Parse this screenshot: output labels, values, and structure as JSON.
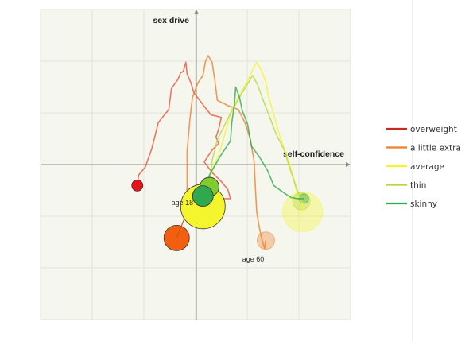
{
  "chart_data": {
    "type": "scatter",
    "title": "",
    "xlabel": "self-confidence",
    "ylabel": "sex drive",
    "xlim": [
      -3,
      3
    ],
    "ylim": [
      -3,
      3
    ],
    "grid": true,
    "legend_position": "right",
    "annotations": [
      {
        "text": "age 18",
        "x": -0.95,
        "y": -1.55
      },
      {
        "text": "age 60",
        "x": 1.75,
        "y": -3.7
      }
    ],
    "series": [
      {
        "name": "overweight",
        "color": "#e8553b",
        "path": [
          [
            -2.25,
            -0.8
          ],
          [
            -2.2,
            -0.4
          ],
          [
            -1.95,
            -0.1
          ],
          [
            -1.7,
            0.6
          ],
          [
            -1.45,
            1.6
          ],
          [
            -1.05,
            2.1
          ],
          [
            -0.95,
            2.9
          ],
          [
            -0.7,
            3.25
          ],
          [
            -0.6,
            3.5
          ],
          [
            -0.5,
            3.55
          ],
          [
            -0.4,
            3.9
          ],
          [
            -0.35,
            3.45
          ],
          [
            -0.2,
            3.1
          ],
          [
            -0.1,
            2.75
          ],
          [
            0.2,
            2.35
          ],
          [
            0.55,
            1.9
          ],
          [
            0.95,
            1.8
          ],
          [
            0.85,
            1.35
          ],
          [
            0.75,
            1.05
          ],
          [
            0.85,
            0.8
          ],
          [
            0.6,
            0.55
          ],
          [
            0.3,
            0.1
          ],
          [
            0.6,
            -0.3
          ],
          [
            0.95,
            -0.65
          ],
          [
            1.2,
            -0.95
          ],
          [
            1.3,
            -1.3
          ],
          [
            1.05,
            -1.3
          ],
          [
            0.7,
            -1.4
          ],
          [
            0.45,
            -1.3
          ],
          [
            0.3,
            -1.3
          ]
        ],
        "bubble": {
          "x": 0.3,
          "y": -1.25,
          "r": 7,
          "faded": true
        }
      },
      {
        "name": "a little extra",
        "color": "#f07e2a",
        "path": [
          [
            -0.4,
            -1.8
          ],
          [
            -0.35,
            -0.8
          ],
          [
            -0.35,
            0.5
          ],
          [
            -0.25,
            1.7
          ],
          [
            -0.15,
            2.55
          ],
          [
            0.05,
            3.1
          ],
          [
            0.25,
            3.4
          ],
          [
            0.35,
            3.95
          ],
          [
            0.45,
            4.15
          ],
          [
            0.6,
            3.9
          ],
          [
            0.7,
            3.25
          ],
          [
            0.8,
            2.45
          ],
          [
            1.2,
            2.25
          ],
          [
            1.6,
            2.1
          ],
          [
            1.85,
            1.6
          ],
          [
            2.05,
            1.0
          ],
          [
            2.2,
            0.15
          ],
          [
            2.25,
            -0.9
          ],
          [
            2.3,
            -1.8
          ],
          [
            2.4,
            -2.4
          ],
          [
            2.5,
            -2.85
          ],
          [
            2.6,
            -3.2
          ],
          [
            2.65,
            -2.9
          ]
        ],
        "bubble": {
          "x": 2.65,
          "y": -2.9,
          "r": 11,
          "faded": true
        }
      },
      {
        "name": "average",
        "color": "#f5f52d",
        "path": [
          [
            0.3,
            -1.6
          ],
          [
            0.45,
            -0.6
          ],
          [
            0.9,
            0.5
          ],
          [
            1.35,
            2.1
          ],
          [
            1.9,
            3.1
          ],
          [
            2.3,
            3.9
          ],
          [
            2.45,
            3.65
          ],
          [
            2.65,
            3.15
          ],
          [
            2.75,
            2.6
          ],
          [
            2.95,
            1.9
          ],
          [
            3.15,
            1.2
          ],
          [
            3.35,
            0.6
          ],
          [
            3.55,
            0.05
          ],
          [
            3.7,
            -0.5
          ],
          [
            3.8,
            -0.95
          ],
          [
            4.05,
            -1.5
          ],
          [
            4.05,
            -1.8
          ]
        ],
        "bubble": {
          "x": 4.05,
          "y": -1.8,
          "r": 25,
          "faded": true
        },
        "bubble_start": {
          "x": 0.25,
          "y": -1.6,
          "r": 28
        }
      },
      {
        "name": "thin",
        "color": "#b5d83d",
        "path": [
          [
            0.5,
            -0.85
          ],
          [
            0.6,
            0.15
          ],
          [
            0.8,
            0.95
          ],
          [
            1.3,
            1.95
          ],
          [
            1.75,
            2.75
          ],
          [
            2.15,
            3.4
          ],
          [
            2.35,
            3.0
          ],
          [
            2.55,
            2.45
          ],
          [
            2.8,
            1.8
          ],
          [
            3.05,
            1.15
          ],
          [
            3.35,
            0.55
          ],
          [
            3.55,
            -0.1
          ],
          [
            3.75,
            -0.7
          ],
          [
            3.85,
            -1.0
          ],
          [
            4.0,
            -1.4
          ]
        ],
        "bubble": {
          "x": 4.0,
          "y": -1.4,
          "r": 11,
          "faded": true
        },
        "bubble_start": {
          "x": 0.5,
          "y": -0.85,
          "r": 12
        }
      },
      {
        "name": "skinny",
        "color": "#2fa850",
        "path": [
          [
            0.25,
            -1.2
          ],
          [
            0.5,
            -0.4
          ],
          [
            0.9,
            0.3
          ],
          [
            1.3,
            0.9
          ],
          [
            1.35,
            1.6
          ],
          [
            1.45,
            2.3
          ],
          [
            1.5,
            2.95
          ],
          [
            1.65,
            2.55
          ],
          [
            1.75,
            2.05
          ],
          [
            1.95,
            1.55
          ],
          [
            2.1,
            0.7
          ],
          [
            2.4,
            0.3
          ],
          [
            2.7,
            -0.2
          ],
          [
            2.95,
            -0.8
          ],
          [
            3.3,
            -1.05
          ],
          [
            3.6,
            -1.25
          ],
          [
            3.85,
            -1.3
          ],
          [
            4.1,
            -1.3
          ]
        ],
        "bubble": {
          "x": 4.1,
          "y": -1.3,
          "r": 6,
          "faded": true
        },
        "bubble_start": {
          "x": 0.25,
          "y": -1.2,
          "r": 13
        }
      }
    ],
    "start_points": [
      {
        "series": "overweight",
        "x": -2.25,
        "y": -0.8,
        "r": 7,
        "color": "#e8121b"
      },
      {
        "series": "a little extra",
        "x": -0.75,
        "y": -2.8,
        "r": 16,
        "color": "#f25f10"
      }
    ]
  },
  "legend": {
    "items": [
      {
        "label": "overweight",
        "color": "#c8291f"
      },
      {
        "label": "a little extra",
        "color": "#f07e2a"
      },
      {
        "label": "average",
        "color": "#f5f52d"
      },
      {
        "label": "thin",
        "color": "#b5d83d"
      },
      {
        "label": "skinny",
        "color": "#2fa850"
      }
    ]
  }
}
